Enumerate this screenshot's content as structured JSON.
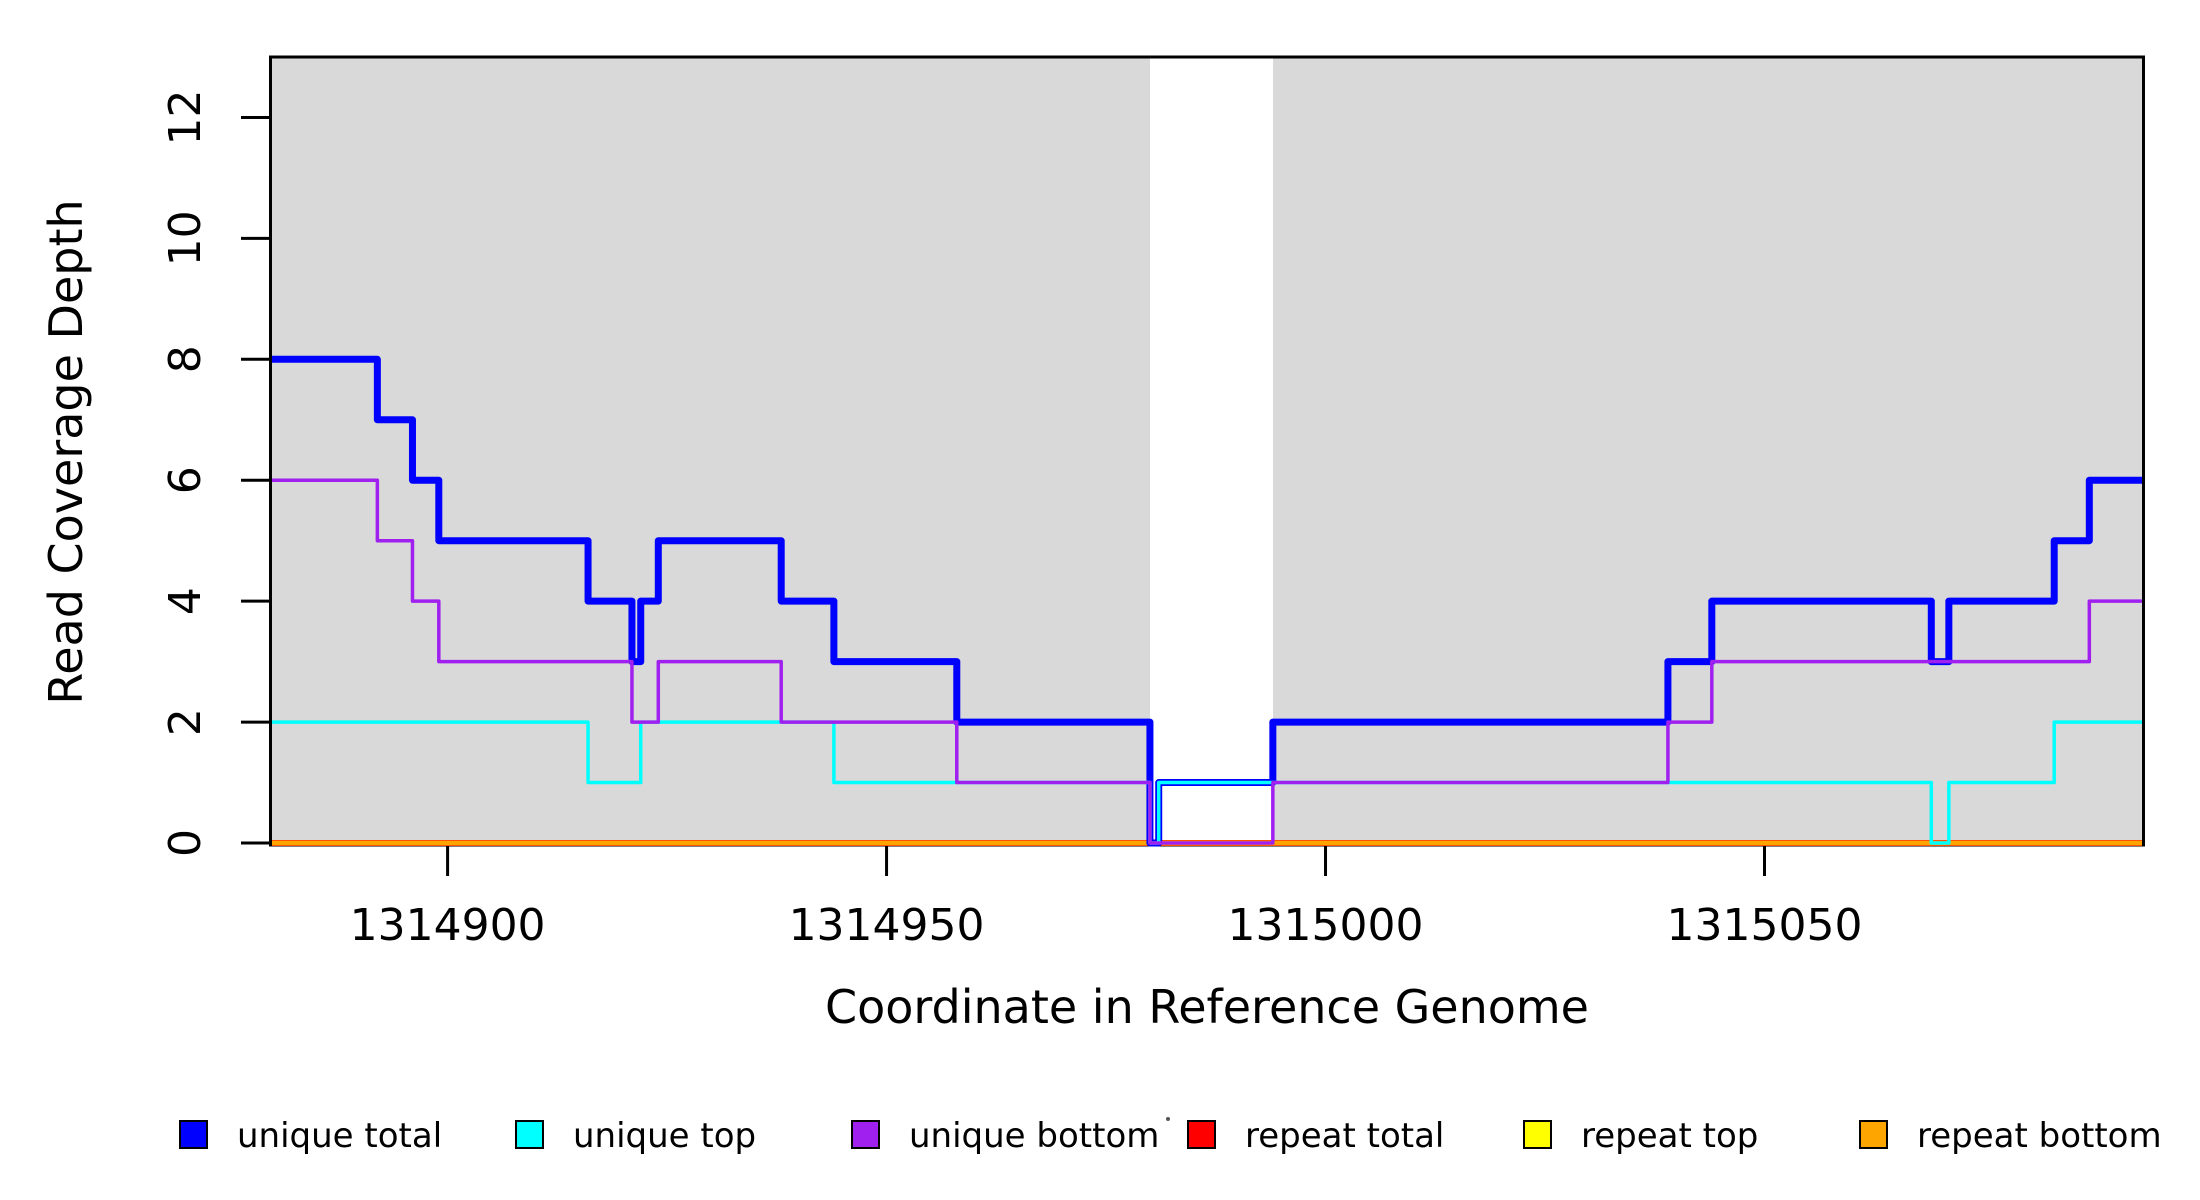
{
  "chart_data": {
    "type": "line",
    "subtype": "step-coverage-plot",
    "title": "",
    "xlabel": "Coordinate in Reference Genome",
    "ylabel": "Read Coverage Depth",
    "xlim": [
      1314880,
      1315093
    ],
    "ylim": [
      0,
      13
    ],
    "x_ticks": [
      1314900,
      1314950,
      1315000,
      1315050
    ],
    "y_ticks": [
      0,
      2,
      4,
      6,
      8,
      10,
      12
    ],
    "grid": false,
    "legend_position": "bottom",
    "background_bands": {
      "color": "#d9d9d9",
      "note": "shaded reference regions; white gap between them",
      "ranges": [
        [
          1314880,
          1314980
        ],
        [
          1314994,
          1315093
        ]
      ]
    },
    "series": [
      {
        "name": "repeat total",
        "color": "#ff0000",
        "width": 6,
        "steps": [
          [
            1314880,
            0
          ]
        ]
      },
      {
        "name": "repeat top",
        "color": "#ffff00",
        "width": 3.5,
        "steps": [
          [
            1314880,
            0
          ]
        ]
      },
      {
        "name": "repeat bottom",
        "color": "#ffa500",
        "width": 5,
        "steps": [
          [
            1314880,
            0
          ]
        ]
      },
      {
        "name": "unique total",
        "color": "#0000ff",
        "width": 7,
        "steps": [
          [
            1314880,
            8
          ],
          [
            1314892,
            7
          ],
          [
            1314896,
            6
          ],
          [
            1314899,
            5
          ],
          [
            1314916,
            4
          ],
          [
            1314921,
            3
          ],
          [
            1314922,
            4
          ],
          [
            1314924,
            5
          ],
          [
            1314938,
            4
          ],
          [
            1314944,
            3
          ],
          [
            1314958,
            2
          ],
          [
            1314980,
            0
          ],
          [
            1314981,
            1
          ],
          [
            1314994,
            2
          ],
          [
            1315039,
            3
          ],
          [
            1315044,
            4
          ],
          [
            1315069,
            3
          ],
          [
            1315071,
            4
          ],
          [
            1315083,
            5
          ],
          [
            1315087,
            6
          ]
        ]
      },
      {
        "name": "unique top",
        "color": "#00ffff",
        "width": 3.5,
        "steps": [
          [
            1314880,
            2
          ],
          [
            1314916,
            1
          ],
          [
            1314922,
            2
          ],
          [
            1314944,
            1
          ],
          [
            1314980,
            0
          ],
          [
            1314981,
            1
          ],
          [
            1315069,
            0
          ],
          [
            1315071,
            1
          ],
          [
            1315083,
            2
          ]
        ]
      },
      {
        "name": "unique bottom",
        "color": "#a020f0",
        "width": 3.5,
        "steps": [
          [
            1314880,
            6
          ],
          [
            1314892,
            5
          ],
          [
            1314896,
            4
          ],
          [
            1314899,
            3
          ],
          [
            1314921,
            2
          ],
          [
            1314924,
            3
          ],
          [
            1314938,
            2
          ],
          [
            1314958,
            1
          ],
          [
            1314980,
            0
          ],
          [
            1314994,
            1
          ],
          [
            1315039,
            2
          ],
          [
            1315044,
            3
          ],
          [
            1315087,
            4
          ]
        ]
      }
    ],
    "legend": [
      {
        "label": "unique total",
        "color": "#0000ff"
      },
      {
        "label": "unique top",
        "color": "#00ffff"
      },
      {
        "label": "unique bottom",
        "color": "#a020f0"
      },
      {
        "label": "repeat total",
        "color": "#ff0000"
      },
      {
        "label": "repeat top",
        "color": "#ffff00"
      },
      {
        "label": "repeat bottom",
        "color": "#ffa500"
      }
    ]
  }
}
